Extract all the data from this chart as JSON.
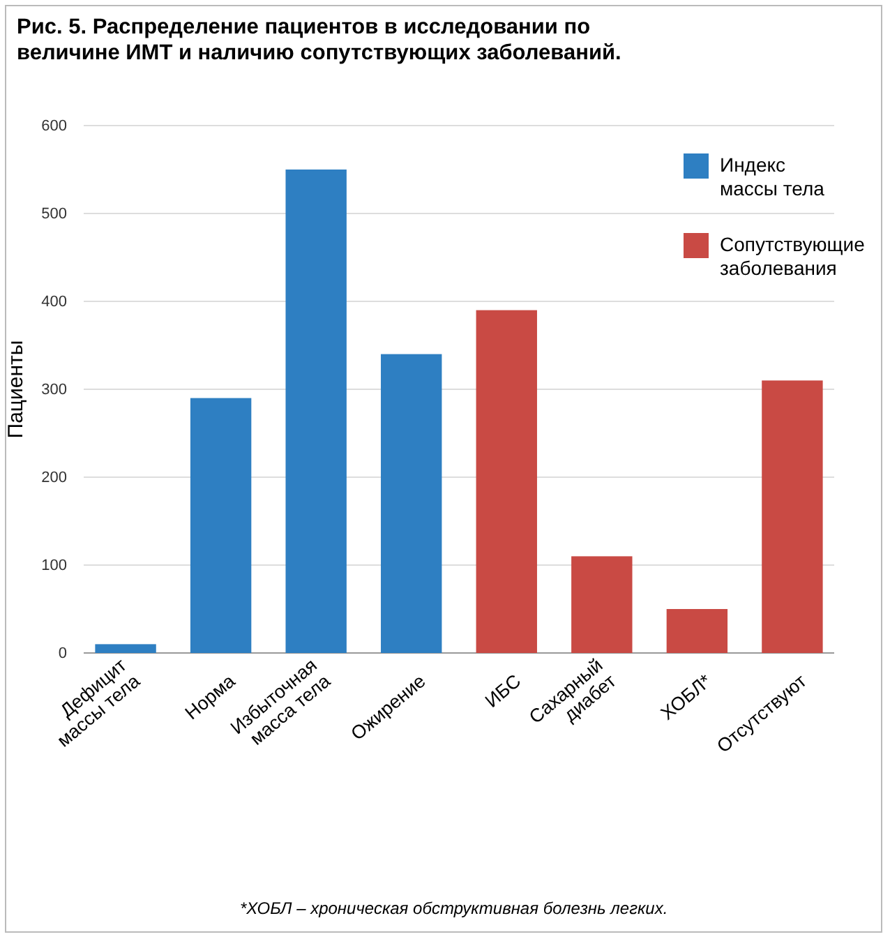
{
  "chart_data": {
    "type": "bar",
    "title": "Рис. 5. Распределение пациентов в исследовании по величине ИМТ и наличию сопутствующих заболеваний.",
    "ylabel": "Пациенты",
    "categories": [
      "Дефицит массы тела",
      "Норма",
      "Избыточная масса тела",
      "Ожирение",
      "ИБС",
      "Сахарный диабет",
      "ХОБЛ*",
      "Отсутствуют"
    ],
    "series": [
      {
        "name": "Индекс массы тела",
        "color": "#2e7fc2",
        "values": [
          10,
          290,
          550,
          340,
          null,
          null,
          null,
          null
        ]
      },
      {
        "name": "Сопутствующие заболевания",
        "color": "#c94a44",
        "values": [
          null,
          null,
          null,
          null,
          390,
          110,
          50,
          310
        ]
      }
    ],
    "ylim": [
      0,
      600
    ],
    "yticks": [
      0,
      100,
      200,
      300,
      400,
      500,
      600
    ],
    "grid": "y",
    "legend": "top right",
    "annotations": [
      "*ХОБЛ – хроническая обструктивная болезнь легких."
    ]
  }
}
